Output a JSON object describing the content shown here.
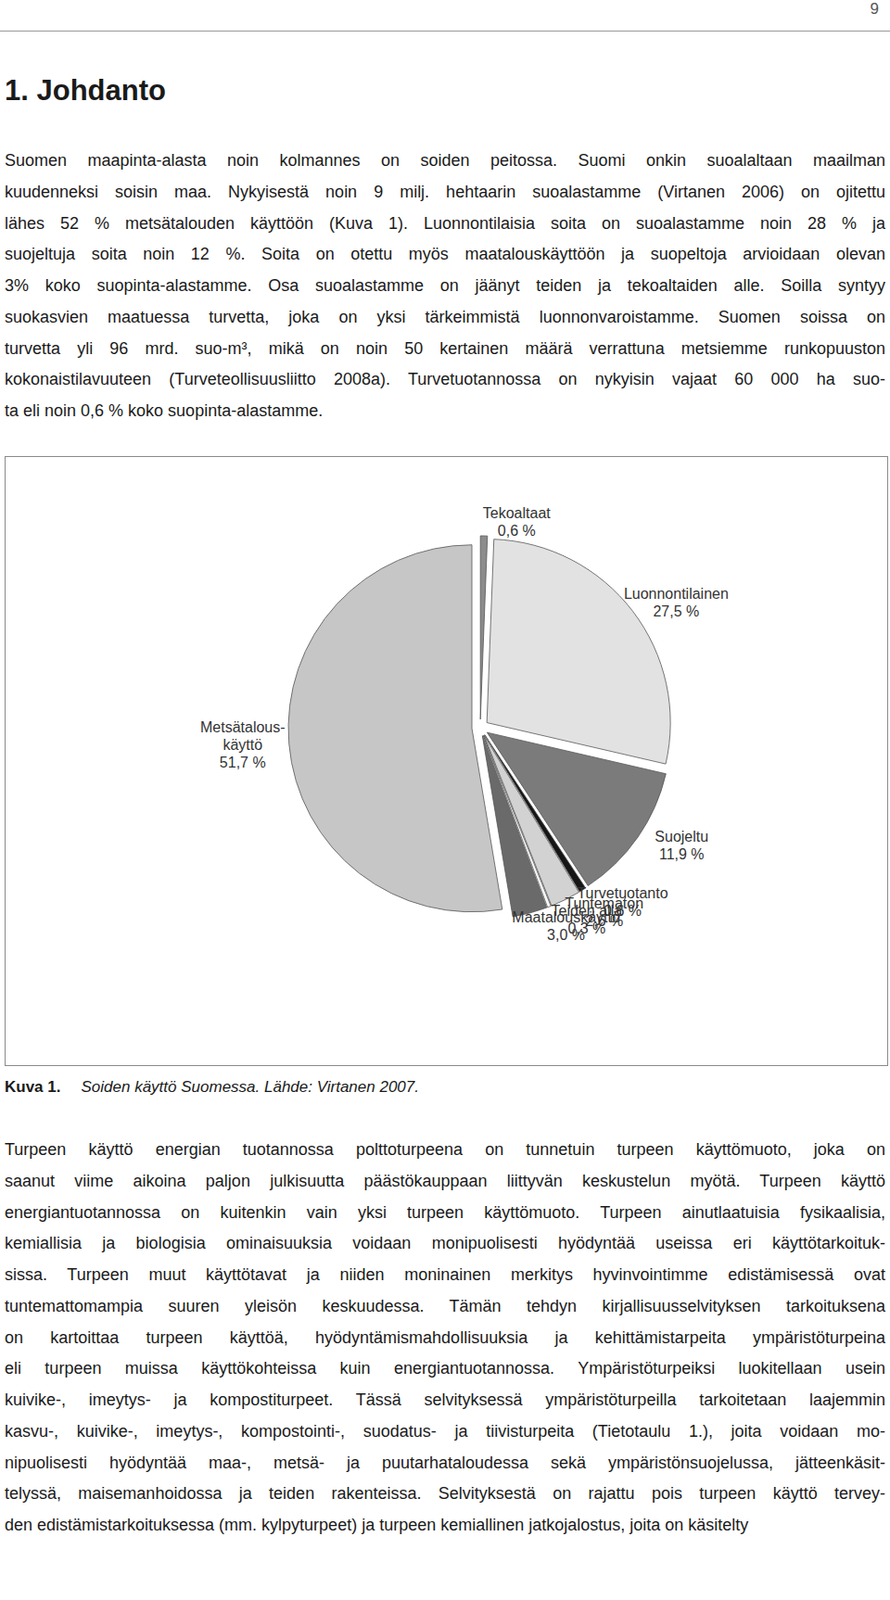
{
  "document": {
    "page_number": "9",
    "heading": "1. Johdanto",
    "paragraphs": [
      [
        "Suomen maapinta-alasta noin kolmannes on soiden peitossa. Suomi onkin suoalaltaan maailman",
        "kuudenneksi soisin maa. Nykyisestä noin 9 milj. hehtaarin suoalastamme (Virtanen 2006) on ojitettu",
        "lähes 52 % metsätalouden käyttöön (Kuva 1).  Luonnontilaisia soita on suoalastamme noin 28 % ja",
        "suojeltuja soita noin 12 %. Soita on otettu myös maatalouskäyttöön ja suopeltoja arvioidaan olevan",
        "3% koko suopinta-alastamme. Osa suoalastamme on jäänyt teiden ja tekoaltaiden alle. Soilla syntyy",
        "suokasvien maatuessa turvetta, joka on yksi tärkeimmistä luonnonvaroistamme. Suomen soissa on",
        "turvetta yli 96 mrd. suo-m³, mikä on noin 50 kertainen määrä verrattuna metsiemme runkopuuston",
        "kokonaistilavuuteen (Turveteollisuusliitto 2008a). Turvetuotannossa on nykyisin vajaat 60 000 ha suo-",
        "ta eli noin 0,6 % koko suopinta-alastamme."
      ],
      [
        "Turpeen käyttö energian tuotannossa polttoturpeena on tunnetuin turpeen käyttömuoto, joka on",
        "saanut viime aikoina paljon julkisuutta päästökauppaan liittyvän keskustelun myötä. Turpeen käyttö",
        "energiantuotannossa on kuitenkin vain yksi turpeen käyttömuoto. Turpeen ainutlaatuisia fysikaalisia,",
        "kemiallisia ja biologisia ominaisuuksia voidaan monipuolisesti hyödyntää useissa eri käyttötarkoituk-",
        "sissa. Turpeen muut käyttötavat ja niiden moninainen merkitys hyvinvointimme edistämisessä ovat",
        "tuntemattomampia suuren yleisön keskuudessa. Tämän tehdyn kirjallisuusselvityksen tarkoituksena",
        "on kartoittaa turpeen käyttöä, hyödyntämismahdollisuuksia ja kehittämistarpeita ympäristöturpeina",
        "eli turpeen muissa käyttökohteissa kuin energiantuotannossa. Ympäristöturpeiksi luokitellaan usein",
        "kuivike-, imeytys- ja kompostiturpeet. Tässä selvityksessä ympäristöturpeilla tarkoitetaan laajemmin",
        "kasvu-, kuivike-, imeytys-, kompostointi-, suodatus- ja tiivisturpeita (Tietotaulu 1.), joita voidaan mo-",
        "nipuolisesti hyödyntää maa-, metsä- ja puutarhataloudessa sekä ympäristönsuojelussa, jätteenkäsit-",
        "telyssä, maisemanhoidossa ja teiden rakenteissa. Selvityksestä on rajattu pois turpeen käyttö tervey-",
        "den edistämistarkoituksessa (mm. kylpyturpeet) ja turpeen kemiallinen jatkojalostus, joita on käsitelty"
      ]
    ],
    "caption": {
      "label": "Kuva 1.",
      "text": "Soiden käyttö Suomessa. Lähde: Virtanen 2007."
    }
  },
  "chart_data": {
    "type": "pie",
    "categories": [
      "Tekoaltaat",
      "Luonnontilainen",
      "Suojeltu",
      "Turvetuotanto",
      "Tuntematon",
      "Teiden alla",
      "Maatalouskäyttö",
      "Metsätalous-\nkäyttö"
    ],
    "values": [
      0.6,
      27.5,
      11.9,
      0.6,
      2.6,
      0.3,
      3.0,
      51.7
    ],
    "value_labels": [
      "0,6 %",
      "27,5 %",
      "11,9 %",
      "0,6 %",
      "2,6 %",
      "0,3 %",
      "3,0 %",
      "51,7 %"
    ],
    "colors": [
      "#8c8c8c",
      "#e2e2e2",
      "#7b7b7b",
      "#161616",
      "#d2d2d2",
      "#f7f7f7",
      "#6a6a6a",
      "#c6c6c6"
    ],
    "data_labels": true
  }
}
